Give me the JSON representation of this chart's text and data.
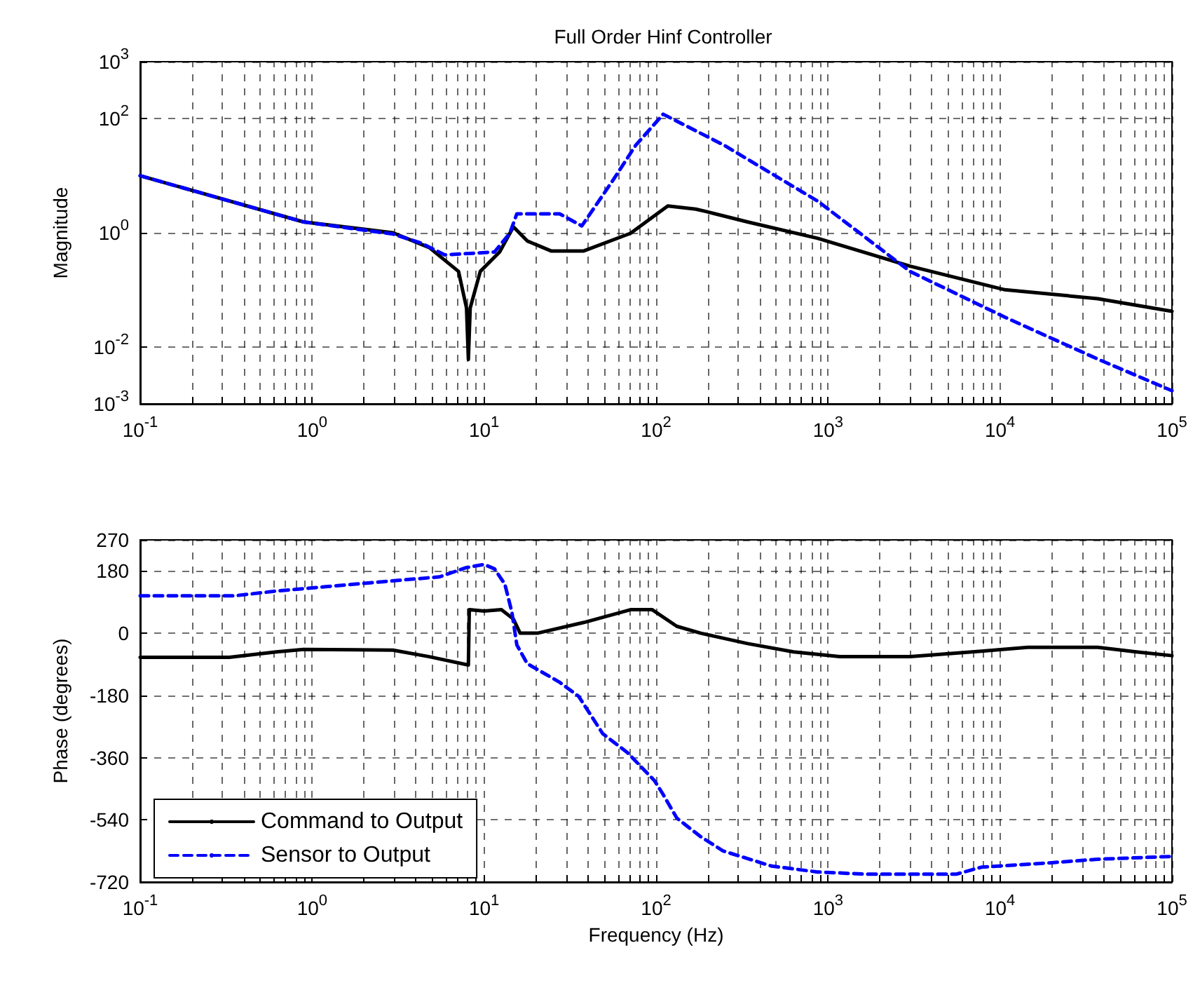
{
  "chart_data": [
    {
      "type": "line",
      "title": "Full Order Hinf Controller",
      "ylabel": "Magnitude",
      "log": "xy",
      "grid": true,
      "legend": false,
      "marker": "none",
      "xlim": [
        0.1,
        100000
      ],
      "ylim": [
        0.001,
        1000
      ],
      "xticks": [
        {
          "value": 0.1,
          "label": "10$^{-1}$"
        },
        {
          "value": 0.2,
          "label": null
        },
        {
          "value": 0.3,
          "label": null
        },
        {
          "value": 0.4,
          "label": null
        },
        {
          "value": 0.5,
          "label": null
        },
        {
          "value": 0.6,
          "label": null
        },
        {
          "value": 0.7,
          "label": null
        },
        {
          "value": 0.8,
          "label": null
        },
        {
          "value": 0.9,
          "label": null
        },
        {
          "value": 1,
          "label": "10$^{0}$"
        },
        {
          "value": 2,
          "label": null
        },
        {
          "value": 3,
          "label": null
        },
        {
          "value": 4,
          "label": null
        },
        {
          "value": 5,
          "label": null
        },
        {
          "value": 6,
          "label": null
        },
        {
          "value": 7,
          "label": null
        },
        {
          "value": 8,
          "label": null
        },
        {
          "value": 9,
          "label": null
        },
        {
          "value": 10,
          "label": "10$^{1}$"
        },
        {
          "value": 20,
          "label": null
        },
        {
          "value": 30,
          "label": null
        },
        {
          "value": 40,
          "label": null
        },
        {
          "value": 50,
          "label": null
        },
        {
          "value": 60,
          "label": null
        },
        {
          "value": 70,
          "label": null
        },
        {
          "value": 80,
          "label": null
        },
        {
          "value": 90,
          "label": null
        },
        {
          "value": 100,
          "label": "10$^{2}$"
        },
        {
          "value": 200,
          "label": null
        },
        {
          "value": 300,
          "label": null
        },
        {
          "value": 400,
          "label": null
        },
        {
          "value": 500,
          "label": null
        },
        {
          "value": 600,
          "label": null
        },
        {
          "value": 700,
          "label": null
        },
        {
          "value": 800,
          "label": null
        },
        {
          "value": 900,
          "label": null
        },
        {
          "value": 1000,
          "label": "10$^{3}$"
        },
        {
          "value": 2000,
          "label": null
        },
        {
          "value": 3000,
          "label": null
        },
        {
          "value": 4000,
          "label": null
        },
        {
          "value": 5000,
          "label": null
        },
        {
          "value": 6000,
          "label": null
        },
        {
          "value": 7000,
          "label": null
        },
        {
          "value": 8000,
          "label": null
        },
        {
          "value": 9000,
          "label": null
        },
        {
          "value": 10000,
          "label": "10$^{4}$"
        },
        {
          "value": 20000,
          "label": null
        },
        {
          "value": 30000,
          "label": null
        },
        {
          "value": 40000,
          "label": null
        },
        {
          "value": 50000,
          "label": null
        },
        {
          "value": 60000,
          "label": null
        },
        {
          "value": 70000,
          "label": null
        },
        {
          "value": 80000,
          "label": null
        },
        {
          "value": 90000,
          "label": null
        },
        {
          "value": 100000,
          "label": "10$^{5}$"
        }
      ],
      "yticks": [
        {
          "value": 0.001,
          "label": "10$^{-3}$"
        },
        {
          "value": 0.01,
          "label": "10$^{-2}$"
        },
        {
          "value": 1,
          "label": "10$^{0}$"
        },
        {
          "value": 100,
          "label": "10$^{2}$"
        },
        {
          "value": 1000,
          "label": "10$^{3}$"
        }
      ],
      "series": [
        {
          "color": "#000000",
          "line_style": "solid",
          "x": [
            0.1,
            0.89,
            2.95,
            4.8,
            7.1,
            7.9,
            8.1,
            8.3,
            9.5,
            12.3,
            14.8,
            17.8,
            24.5,
            38,
            71,
            117,
            170,
            195,
            340,
            870,
            3000,
            10700,
            37000,
            100000
          ],
          "values": [
            10,
            1.55,
            1.0,
            0.55,
            0.21,
            0.048,
            0.006,
            0.048,
            0.21,
            0.46,
            1.27,
            0.72,
            0.48,
            0.48,
            0.98,
            2.96,
            2.6,
            2.36,
            1.55,
            0.8,
            0.26,
            0.1,
            0.07,
            0.042
          ]
        },
        {
          "color": "#0000ff",
          "line_style": "dashed",
          "x": [
            0.1,
            0.89,
            2.95,
            4.3,
            5.9,
            11.5,
            14.1,
            15.5,
            27.5,
            37,
            55,
            76,
            110,
            250,
            870,
            3000,
            10700,
            37000,
            100000
          ],
          "values": [
            10,
            1.55,
            0.95,
            0.66,
            0.41,
            0.46,
            0.98,
            2.15,
            2.15,
            1.32,
            7.6,
            34,
            120,
            34,
            3.6,
            0.21,
            0.033,
            0.0061,
            0.0017
          ]
        }
      ]
    },
    {
      "type": "line",
      "xlabel": "Frequency (Hz)",
      "ylabel": "Phase (degrees)",
      "log": "x",
      "grid": true,
      "legend": "bottom left",
      "marker": "none",
      "xlim": [
        0.1,
        100000
      ],
      "ylim": [
        -720,
        270
      ],
      "xticks": [
        {
          "value": 0.1,
          "label": "10$^{-1}$"
        },
        {
          "value": 0.2,
          "label": null
        },
        {
          "value": 0.3,
          "label": null
        },
        {
          "value": 0.4,
          "label": null
        },
        {
          "value": 0.5,
          "label": null
        },
        {
          "value": 0.6,
          "label": null
        },
        {
          "value": 0.7,
          "label": null
        },
        {
          "value": 0.8,
          "label": null
        },
        {
          "value": 0.9,
          "label": null
        },
        {
          "value": 1,
          "label": "10$^{0}$"
        },
        {
          "value": 2,
          "label": null
        },
        {
          "value": 3,
          "label": null
        },
        {
          "value": 4,
          "label": null
        },
        {
          "value": 5,
          "label": null
        },
        {
          "value": 6,
          "label": null
        },
        {
          "value": 7,
          "label": null
        },
        {
          "value": 8,
          "label": null
        },
        {
          "value": 9,
          "label": null
        },
        {
          "value": 10,
          "label": "10$^{1}$"
        },
        {
          "value": 20,
          "label": null
        },
        {
          "value": 30,
          "label": null
        },
        {
          "value": 40,
          "label": null
        },
        {
          "value": 50,
          "label": null
        },
        {
          "value": 60,
          "label": null
        },
        {
          "value": 70,
          "label": null
        },
        {
          "value": 80,
          "label": null
        },
        {
          "value": 90,
          "label": null
        },
        {
          "value": 100,
          "label": "10$^{2}$"
        },
        {
          "value": 200,
          "label": null
        },
        {
          "value": 300,
          "label": null
        },
        {
          "value": 400,
          "label": null
        },
        {
          "value": 500,
          "label": null
        },
        {
          "value": 600,
          "label": null
        },
        {
          "value": 700,
          "label": null
        },
        {
          "value": 800,
          "label": null
        },
        {
          "value": 900,
          "label": null
        },
        {
          "value": 1000,
          "label": "10$^{3}$"
        },
        {
          "value": 2000,
          "label": null
        },
        {
          "value": 3000,
          "label": null
        },
        {
          "value": 4000,
          "label": null
        },
        {
          "value": 5000,
          "label": null
        },
        {
          "value": 6000,
          "label": null
        },
        {
          "value": 7000,
          "label": null
        },
        {
          "value": 8000,
          "label": null
        },
        {
          "value": 9000,
          "label": null
        },
        {
          "value": 10000,
          "label": "10$^{4}$"
        },
        {
          "value": 20000,
          "label": null
        },
        {
          "value": 30000,
          "label": null
        },
        {
          "value": 40000,
          "label": null
        },
        {
          "value": 50000,
          "label": null
        },
        {
          "value": 60000,
          "label": null
        },
        {
          "value": 70000,
          "label": null
        },
        {
          "value": 80000,
          "label": null
        },
        {
          "value": 90000,
          "label": null
        },
        {
          "value": 100000,
          "label": "10$^{5}$"
        }
      ],
      "yticks": [
        -720,
        -540,
        -360,
        -180,
        0,
        180,
        270
      ],
      "series": [
        {
          "name": "Command to Output",
          "color": "#000000",
          "line_style": "solid",
          "x": [
            0.1,
            0.33,
            0.62,
            0.89,
            2.95,
            4.8,
            8.1,
            8.2,
            10,
            12.6,
            14.8,
            16.2,
            20.4,
            38,
            71,
            95,
            132,
            182,
            340,
            630,
            1170,
            3000,
            7800,
            14500,
            37000,
            62000,
            100000
          ],
          "values": [
            -70,
            -70,
            -54,
            -47,
            -49,
            -68,
            -92,
            68,
            64,
            68,
            41,
            0,
            0,
            31,
            68,
            68,
            20,
            0,
            -30,
            -54,
            -68,
            -68,
            -52,
            -41,
            -41,
            -54,
            -65
          ]
        },
        {
          "name": "Sensor to Output",
          "color": "#0000ff",
          "line_style": "dashed",
          "x": [
            0.1,
            0.35,
            0.62,
            1.23,
            2.57,
            5.5,
            7.9,
            10,
            11.5,
            13.2,
            14.5,
            15.5,
            17.8,
            27.5,
            35.5,
            49,
            68,
            98,
            110,
            132,
            182,
            245,
            470,
            870,
            1620,
            5600,
            7800,
            20000,
            37000,
            100000
          ],
          "values": [
            108,
            108,
            122,
            135,
            149,
            163,
            190,
            199,
            186,
            142,
            61,
            -34,
            -88,
            -142,
            -183,
            -291,
            -345,
            -427,
            -467,
            -535,
            -589,
            -630,
            -674,
            -691,
            -697,
            -697,
            -677,
            -664,
            -654,
            -646
          ]
        }
      ]
    }
  ]
}
